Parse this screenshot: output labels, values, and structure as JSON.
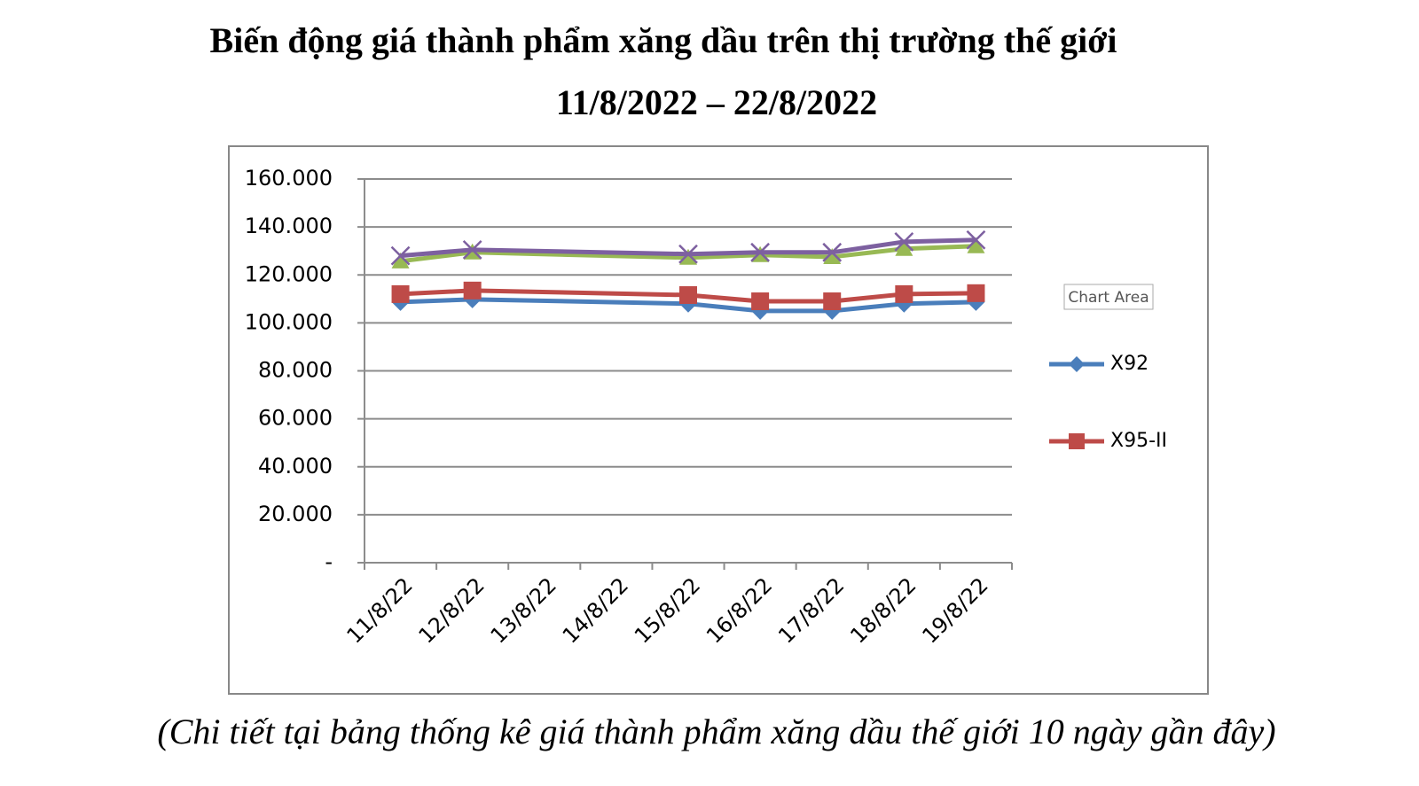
{
  "chart_data": {
    "type": "line",
    "title": "Biến động giá thành phẩm xăng dầu trên thị trường thế giới",
    "subtitle": "11/8/2022 – 22/8/2022",
    "caption": "(Chi tiết tại bảng thống kê giá thành phẩm xăng dầu thế giới 10 ngày gần đây)",
    "tooltip": "Chart Area",
    "categories": [
      "11/8/22",
      "12/8/22",
      "13/8/22",
      "14/8/22",
      "15/8/22",
      "16/8/22",
      "17/8/22",
      "18/8/22",
      "19/8/22"
    ],
    "series": [
      {
        "name": "X92",
        "color": "#4a7ebb",
        "marker": "diamond",
        "values": [
          108700,
          109800,
          null,
          null,
          108000,
          105000,
          105000,
          108000,
          108700
        ]
      },
      {
        "name": "X95-II",
        "color": "#be4b48",
        "marker": "square",
        "values": [
          112000,
          113500,
          null,
          null,
          111600,
          109000,
          109000,
          112000,
          112400
        ]
      },
      {
        "color": "#98b954",
        "marker": "triangle",
        "values": [
          125700,
          129400,
          null,
          null,
          127200,
          128300,
          127500,
          130900,
          132000
        ]
      },
      {
        "color": "#7d60a0",
        "marker": "x",
        "values": [
          128000,
          130500,
          null,
          null,
          128700,
          129400,
          129400,
          133800,
          134600
        ]
      }
    ],
    "connect_gaps": true,
    "ylim": [
      0,
      160000
    ],
    "yticks": [
      {
        "value": 0,
        "label": "-"
      },
      {
        "value": 20000,
        "label": "20.000"
      },
      {
        "value": 40000,
        "label": "40.000"
      },
      {
        "value": 60000,
        "label": "60.000"
      },
      {
        "value": 80000,
        "label": "80.000"
      },
      {
        "value": 100000,
        "label": "100.000"
      },
      {
        "value": 120000,
        "label": "120.000"
      },
      {
        "value": 140000,
        "label": "140.000"
      },
      {
        "value": 160000,
        "label": "160.000"
      }
    ],
    "grid": true,
    "legend": "right"
  }
}
